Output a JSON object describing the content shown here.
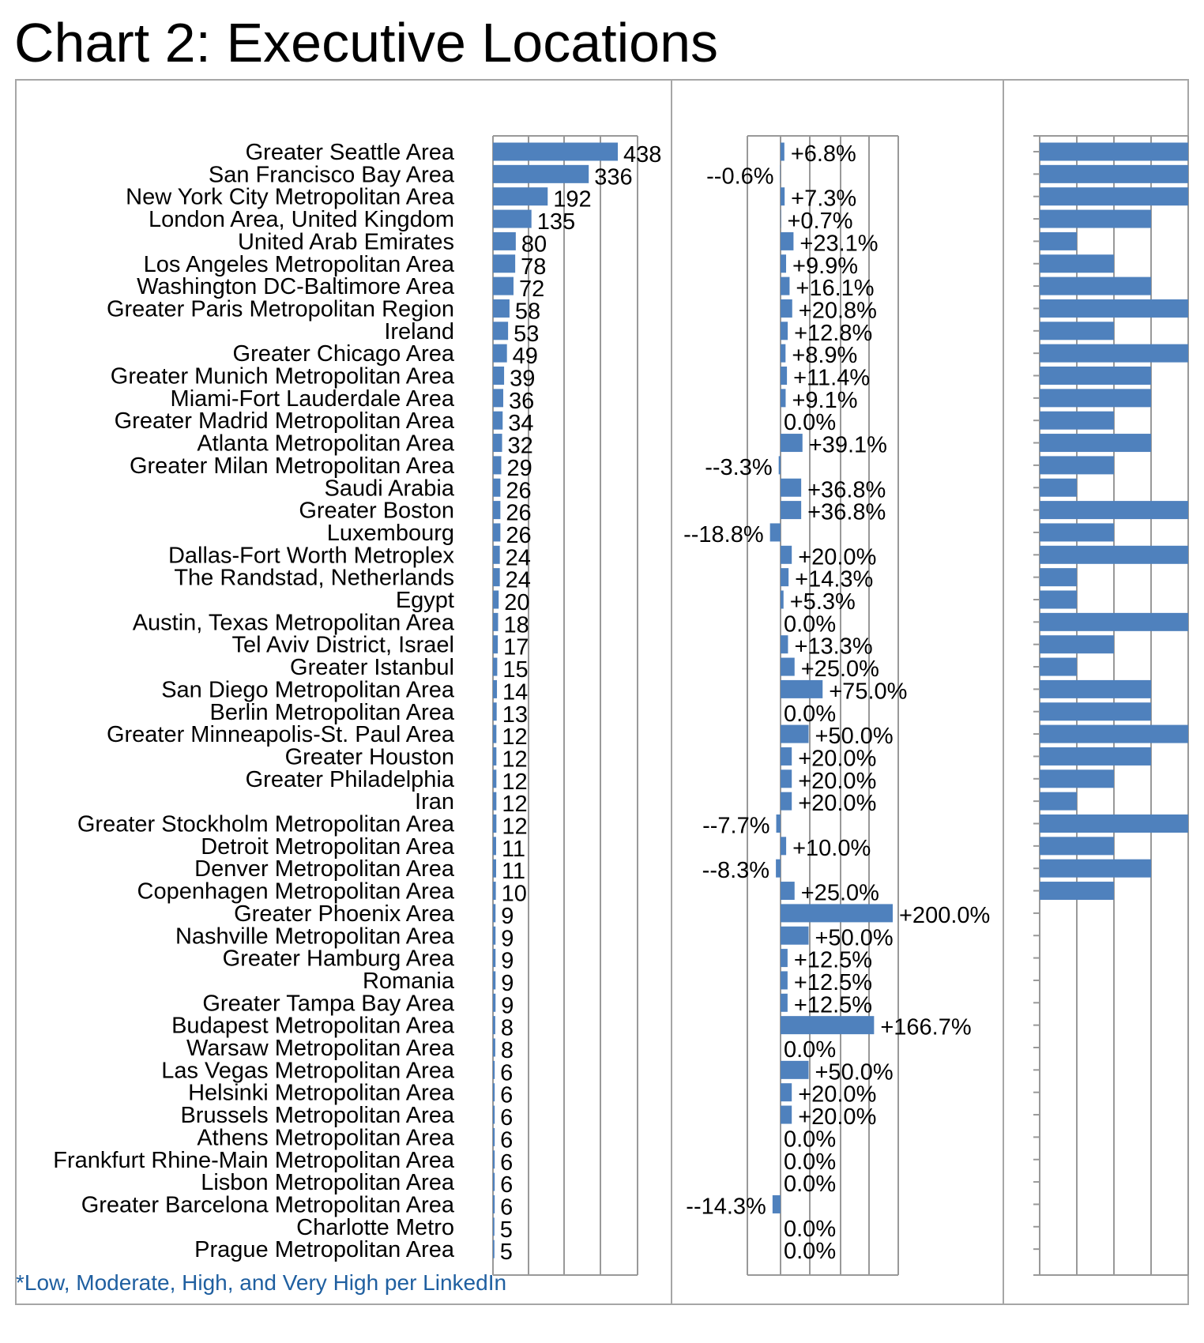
{
  "title": "Chart 2: Executive Locations",
  "footnote": "*Low, Moderate, High, and Very High per LinkedIn",
  "colors": {
    "bar": "#4f81bd",
    "axis": "#999999",
    "frame": "#a6a6a6",
    "text": "#000000",
    "footnote": "#1f5fa0"
  },
  "chart_data": [
    {
      "type": "bar",
      "orientation": "horizontal",
      "categories": [
        "Greater Seattle Area",
        "San Francisco Bay Area",
        "New York City Metropolitan Area",
        "London Area, United Kingdom",
        "United Arab Emirates",
        "Los Angeles Metropolitan Area",
        "Washington DC-Baltimore Area",
        "Greater Paris Metropolitan Region",
        "Ireland",
        "Greater Chicago Area",
        "Greater Munich Metropolitan Area",
        "Miami-Fort Lauderdale Area",
        "Greater Madrid Metropolitan Area",
        "Atlanta Metropolitan Area",
        "Greater Milan Metropolitan Area",
        "Saudi Arabia",
        "Greater Boston",
        "Luxembourg",
        "Dallas-Fort Worth Metroplex",
        "The Randstad, Netherlands",
        "Egypt",
        "Austin, Texas Metropolitan Area",
        "Tel Aviv District, Israel",
        "Greater Istanbul",
        "San Diego Metropolitan Area",
        "Berlin Metropolitan Area",
        "Greater Minneapolis-St. Paul Area",
        "Greater Houston",
        "Greater Philadelphia",
        "Iran",
        "Greater Stockholm Metropolitan Area",
        "Detroit Metropolitan Area",
        "Denver Metropolitan Area",
        "Copenhagen Metropolitan Area",
        "Greater Phoenix Area",
        "Nashville Metropolitan Area",
        "Greater Hamburg Area",
        "Romania",
        "Greater Tampa Bay Area",
        "Budapest Metropolitan Area",
        "Warsaw Metropolitan Area",
        "Las Vegas Metropolitan Area",
        "Helsinki Metropolitan Area",
        "Brussels Metropolitan Area",
        "Athens Metropolitan Area",
        "Frankfurt Rhine-Main Metropolitan Area",
        "Lisbon Metropolitan Area",
        "Greater Barcelona Metropolitan Area",
        "Charlotte Metro",
        "Prague Metropolitan Area"
      ],
      "values": [
        438,
        336,
        192,
        135,
        80,
        78,
        72,
        58,
        53,
        49,
        39,
        36,
        34,
        32,
        29,
        26,
        26,
        26,
        24,
        24,
        20,
        18,
        17,
        15,
        14,
        13,
        12,
        12,
        12,
        12,
        12,
        11,
        11,
        10,
        9,
        9,
        9,
        9,
        9,
        8,
        8,
        6,
        6,
        6,
        6,
        6,
        6,
        6,
        5,
        5
      ],
      "xlim": [
        0,
        438
      ]
    },
    {
      "type": "bar",
      "orientation": "horizontal",
      "labels": [
        "+6.8%",
        "--0.6%",
        "+7.3%",
        "+0.7%",
        "+23.1%",
        "+9.9%",
        "+16.1%",
        "+20.8%",
        "+12.8%",
        "+8.9%",
        "+11.4%",
        "+9.1%",
        "0.0%",
        "+39.1%",
        "--3.3%",
        "+36.8%",
        "+36.8%",
        "--18.8%",
        "+20.0%",
        "+14.3%",
        "+5.3%",
        "0.0%",
        "+13.3%",
        "+25.0%",
        "+75.0%",
        "0.0%",
        "+50.0%",
        "+20.0%",
        "+20.0%",
        "+20.0%",
        "--7.7%",
        "+10.0%",
        "--8.3%",
        "+25.0%",
        "+200.0%",
        "+50.0%",
        "+12.5%",
        "+12.5%",
        "+12.5%",
        "+166.7%",
        "0.0%",
        "+50.0%",
        "+20.0%",
        "+20.0%",
        "0.0%",
        "0.0%",
        "0.0%",
        "--14.3%",
        "0.0%",
        "0.0%"
      ],
      "values": [
        6.8,
        -0.6,
        7.3,
        0.7,
        23.1,
        9.9,
        16.1,
        20.8,
        12.8,
        8.9,
        11.4,
        9.1,
        0.0,
        39.1,
        -3.3,
        36.8,
        36.8,
        -18.8,
        20.0,
        14.3,
        5.3,
        0.0,
        13.3,
        25.0,
        75.0,
        0.0,
        50.0,
        20.0,
        20.0,
        20.0,
        -7.7,
        10.0,
        -8.3,
        25.0,
        200.0,
        50.0,
        12.5,
        12.5,
        12.5,
        166.7,
        0.0,
        50.0,
        20.0,
        20.0,
        0.0,
        0.0,
        0.0,
        -14.3,
        0.0,
        0.0
      ]
    },
    {
      "type": "bar",
      "orientation": "horizontal",
      "scale": [
        "Low",
        "Moderate",
        "High",
        "Very High"
      ],
      "values": [
        4,
        4,
        4,
        3,
        1,
        2,
        3,
        4,
        2,
        4,
        3,
        3,
        2,
        3,
        2,
        1,
        4,
        2,
        4,
        1,
        1,
        4,
        2,
        1,
        3,
        3,
        4,
        3,
        2,
        1,
        4,
        2,
        3,
        2,
        null,
        null,
        null,
        null,
        null,
        null,
        null,
        null,
        null,
        null,
        null,
        null,
        null,
        null,
        null,
        null
      ]
    }
  ]
}
